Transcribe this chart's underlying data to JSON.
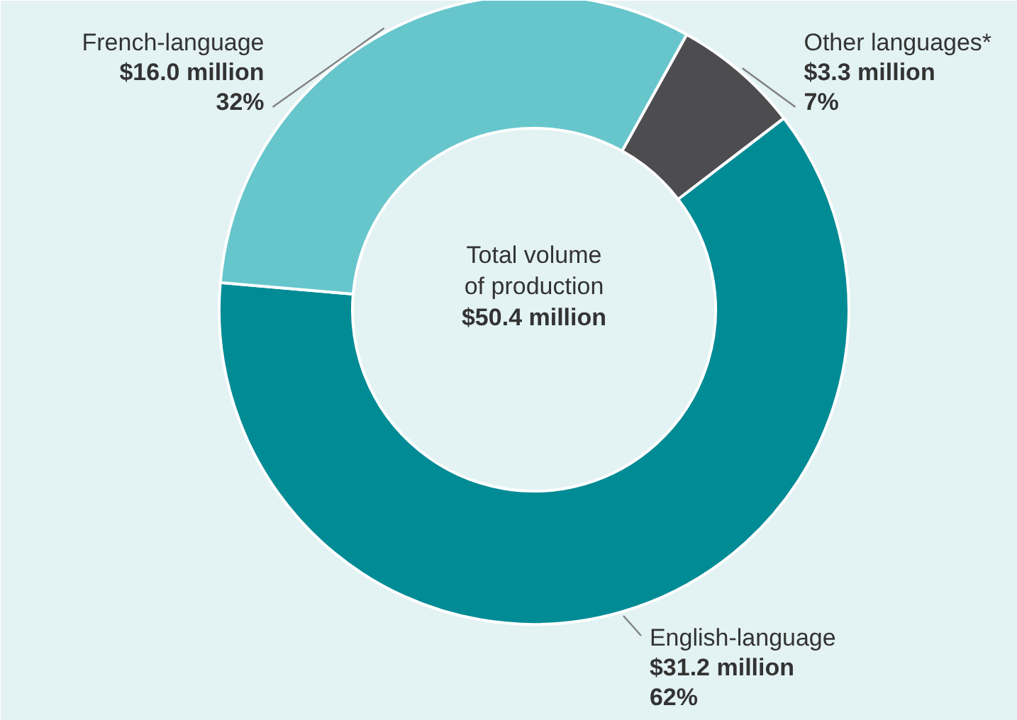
{
  "chart_data": {
    "type": "donut",
    "categories": [
      "Other languages*",
      "English-language",
      "French-language"
    ],
    "values": [
      3.3,
      31.2,
      16.0
    ],
    "value_labels": [
      "$3.3 million",
      "$31.2 million",
      "$16.0 million"
    ],
    "colors": [
      "#4d4d4f",
      "#008b95",
      "#66c6cb"
    ],
    "annotations": [
      "Total volume\nof production",
      "$50.4 million",
      "7%",
      "62%",
      "32%"
    ],
    "legend": false
  }
}
